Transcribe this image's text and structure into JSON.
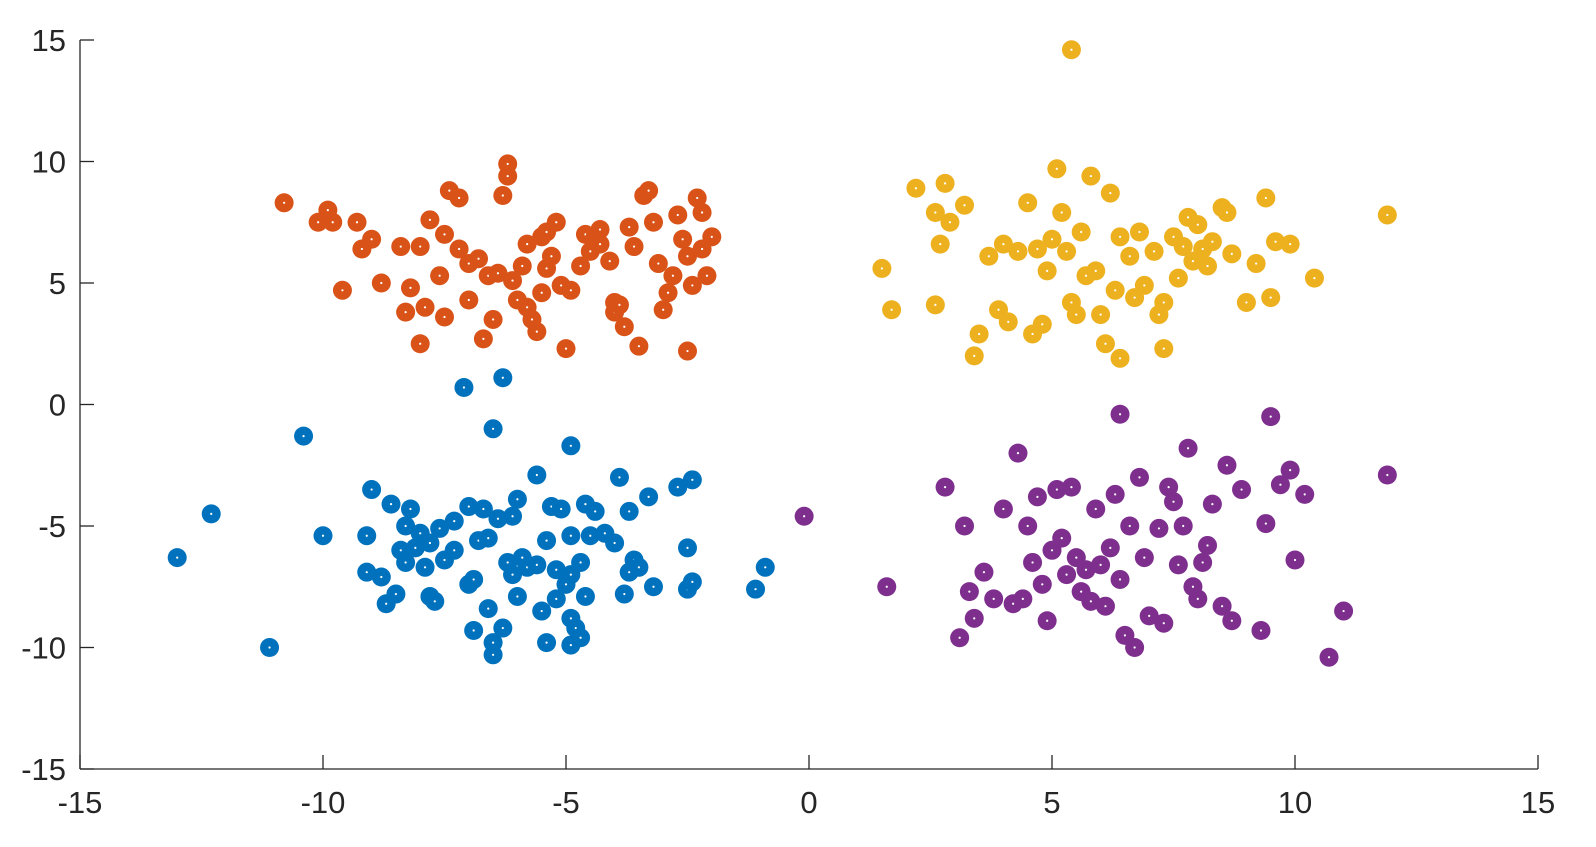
{
  "colors": {
    "background": "#ffffff",
    "axis": "#262626",
    "cluster_blue": "#0072BD",
    "cluster_orange": "#D95319",
    "cluster_yellow": "#EDB120",
    "cluster_purple": "#7E2F8E"
  },
  "chart_data": {
    "type": "scatter",
    "title": "",
    "xlabel": "",
    "ylabel": "",
    "xlim": [
      -15,
      15
    ],
    "ylim": [
      -15,
      15
    ],
    "x_ticks": [
      -15,
      -10,
      -5,
      0,
      5,
      10,
      15
    ],
    "y_ticks": [
      -15,
      -10,
      -5,
      0,
      5,
      10,
      15
    ],
    "x_tick_labels": [
      "-15",
      "-10",
      "-5",
      "0",
      "5",
      "10",
      "15"
    ],
    "y_tick_labels": [
      "-15",
      "-10",
      "-5",
      "0",
      "5",
      "10",
      "15"
    ],
    "grid": false,
    "legend": "none",
    "series": [
      {
        "color": "#0072BD",
        "points": [
          [
            -13.0,
            -6.3
          ],
          [
            -12.3,
            -4.5
          ],
          [
            -11.1,
            -10.0
          ],
          [
            -10.4,
            -1.3
          ],
          [
            -10.0,
            -5.4
          ],
          [
            -9.1,
            -5.4
          ],
          [
            -9.1,
            -6.9
          ],
          [
            -9.0,
            -3.5
          ],
          [
            -8.8,
            -7.1
          ],
          [
            -8.7,
            -8.2
          ],
          [
            -8.6,
            -4.1
          ],
          [
            -8.5,
            -7.8
          ],
          [
            -8.4,
            -6.0
          ],
          [
            -8.3,
            -5.0
          ],
          [
            -8.3,
            -6.5
          ],
          [
            -8.2,
            -4.3
          ],
          [
            -8.1,
            -5.9
          ],
          [
            -8.0,
            -5.3
          ],
          [
            -7.9,
            -6.7
          ],
          [
            -7.8,
            -5.7
          ],
          [
            -7.8,
            -7.9
          ],
          [
            -7.7,
            -8.1
          ],
          [
            -7.6,
            -5.1
          ],
          [
            -7.5,
            -6.4
          ],
          [
            -7.3,
            -6.0
          ],
          [
            -7.3,
            -4.8
          ],
          [
            -7.0,
            -4.2
          ],
          [
            -7.0,
            -7.4
          ],
          [
            -6.9,
            -7.2
          ],
          [
            -6.9,
            -9.3
          ],
          [
            -6.8,
            -5.6
          ],
          [
            -6.7,
            -4.3
          ],
          [
            -6.6,
            -5.5
          ],
          [
            -6.6,
            -8.4
          ],
          [
            -6.5,
            -9.8
          ],
          [
            -6.5,
            -10.3
          ],
          [
            -6.4,
            -4.7
          ],
          [
            -6.3,
            -9.2
          ],
          [
            -6.2,
            -6.5
          ],
          [
            -6.1,
            -4.6
          ],
          [
            -6.1,
            -7.0
          ],
          [
            -6.0,
            -3.9
          ],
          [
            -6.0,
            -7.9
          ],
          [
            -5.9,
            -6.3
          ],
          [
            -5.8,
            -6.7
          ],
          [
            -5.6,
            -2.9
          ],
          [
            -5.6,
            -6.6
          ],
          [
            -5.5,
            -8.5
          ],
          [
            -5.4,
            -5.6
          ],
          [
            -5.4,
            -9.8
          ],
          [
            -5.3,
            -4.2
          ],
          [
            -5.2,
            -6.8
          ],
          [
            -5.2,
            -8.0
          ],
          [
            -5.1,
            -4.3
          ],
          [
            -5.0,
            -7.4
          ],
          [
            -4.9,
            -1.7
          ],
          [
            -4.9,
            -5.4
          ],
          [
            -4.9,
            -7.0
          ],
          [
            -4.9,
            -8.8
          ],
          [
            -4.9,
            -9.9
          ],
          [
            -4.8,
            -9.2
          ],
          [
            -4.7,
            -6.5
          ],
          [
            -4.7,
            -9.6
          ],
          [
            -4.6,
            -4.1
          ],
          [
            -4.6,
            -7.9
          ],
          [
            -4.5,
            -5.4
          ],
          [
            -4.4,
            -4.4
          ],
          [
            -4.2,
            -5.3
          ],
          [
            -4.0,
            -5.7
          ],
          [
            -3.9,
            -3.0
          ],
          [
            -3.8,
            -7.8
          ],
          [
            -3.7,
            -4.4
          ],
          [
            -3.7,
            -6.9
          ],
          [
            -3.6,
            -6.4
          ],
          [
            -3.5,
            -6.7
          ],
          [
            -3.3,
            -3.8
          ],
          [
            -3.2,
            -7.5
          ],
          [
            -2.7,
            -3.4
          ],
          [
            -2.5,
            -7.6
          ],
          [
            -2.5,
            -5.9
          ],
          [
            -2.4,
            -7.3
          ],
          [
            -2.4,
            -3.1
          ],
          [
            -1.1,
            -7.6
          ],
          [
            -0.9,
            -6.7
          ],
          [
            -7.1,
            0.7
          ],
          [
            -6.3,
            1.1
          ],
          [
            -6.5,
            -1.0
          ]
        ]
      },
      {
        "color": "#D95319",
        "points": [
          [
            -10.8,
            8.3
          ],
          [
            -10.1,
            7.5
          ],
          [
            -9.9,
            8.0
          ],
          [
            -9.8,
            7.5
          ],
          [
            -9.6,
            4.7
          ],
          [
            -9.3,
            7.5
          ],
          [
            -9.2,
            6.4
          ],
          [
            -9.0,
            6.8
          ],
          [
            -8.8,
            5.0
          ],
          [
            -8.4,
            6.5
          ],
          [
            -8.3,
            3.8
          ],
          [
            -8.2,
            4.8
          ],
          [
            -8.0,
            2.5
          ],
          [
            -8.0,
            6.5
          ],
          [
            -7.9,
            4.0
          ],
          [
            -7.8,
            7.6
          ],
          [
            -7.6,
            5.3
          ],
          [
            -7.5,
            7.0
          ],
          [
            -7.5,
            3.6
          ],
          [
            -7.4,
            8.8
          ],
          [
            -7.2,
            6.4
          ],
          [
            -7.2,
            8.5
          ],
          [
            -7.0,
            5.8
          ],
          [
            -7.0,
            4.3
          ],
          [
            -6.8,
            6.0
          ],
          [
            -6.7,
            2.7
          ],
          [
            -6.6,
            5.3
          ],
          [
            -6.5,
            3.5
          ],
          [
            -6.4,
            5.4
          ],
          [
            -6.3,
            8.6
          ],
          [
            -6.2,
            9.9
          ],
          [
            -6.2,
            9.4
          ],
          [
            -6.1,
            5.1
          ],
          [
            -6.0,
            4.3
          ],
          [
            -5.9,
            5.7
          ],
          [
            -5.8,
            4.0
          ],
          [
            -5.8,
            6.6
          ],
          [
            -5.7,
            3.5
          ],
          [
            -5.6,
            3.0
          ],
          [
            -5.5,
            6.9
          ],
          [
            -5.5,
            4.6
          ],
          [
            -5.4,
            7.1
          ],
          [
            -5.4,
            5.6
          ],
          [
            -5.3,
            6.1
          ],
          [
            -5.2,
            7.5
          ],
          [
            -5.1,
            4.9
          ],
          [
            -5.0,
            2.3
          ],
          [
            -4.9,
            4.7
          ],
          [
            -4.7,
            5.7
          ],
          [
            -4.6,
            7.0
          ],
          [
            -4.5,
            6.3
          ],
          [
            -4.4,
            6.9
          ],
          [
            -4.3,
            7.2
          ],
          [
            -4.3,
            6.6
          ],
          [
            -4.1,
            5.9
          ],
          [
            -4.0,
            4.2
          ],
          [
            -4.0,
            3.8
          ],
          [
            -3.9,
            4.1
          ],
          [
            -3.8,
            3.2
          ],
          [
            -3.7,
            7.3
          ],
          [
            -3.6,
            6.5
          ],
          [
            -3.5,
            2.4
          ],
          [
            -3.4,
            8.6
          ],
          [
            -3.3,
            8.8
          ],
          [
            -3.2,
            7.5
          ],
          [
            -3.1,
            5.8
          ],
          [
            -3.0,
            3.9
          ],
          [
            -2.9,
            4.6
          ],
          [
            -2.8,
            5.3
          ],
          [
            -2.7,
            7.8
          ],
          [
            -2.6,
            6.8
          ],
          [
            -2.5,
            6.1
          ],
          [
            -2.4,
            4.9
          ],
          [
            -2.3,
            8.5
          ],
          [
            -2.2,
            7.9
          ],
          [
            -2.1,
            5.3
          ],
          [
            -2.5,
            2.2
          ],
          [
            -2.2,
            6.4
          ],
          [
            -2.0,
            6.9
          ]
        ]
      },
      {
        "color": "#EDB120",
        "points": [
          [
            1.5,
            5.6
          ],
          [
            1.7,
            3.9
          ],
          [
            2.2,
            8.9
          ],
          [
            2.6,
            7.9
          ],
          [
            2.6,
            4.1
          ],
          [
            2.7,
            6.6
          ],
          [
            2.8,
            9.1
          ],
          [
            2.9,
            7.5
          ],
          [
            3.2,
            8.2
          ],
          [
            3.4,
            2.0
          ],
          [
            3.5,
            2.9
          ],
          [
            3.7,
            6.1
          ],
          [
            3.9,
            3.9
          ],
          [
            4.0,
            6.6
          ],
          [
            4.1,
            3.4
          ],
          [
            4.3,
            6.3
          ],
          [
            4.5,
            8.3
          ],
          [
            4.6,
            2.9
          ],
          [
            4.7,
            6.4
          ],
          [
            4.8,
            3.3
          ],
          [
            4.9,
            5.5
          ],
          [
            5.0,
            6.8
          ],
          [
            5.1,
            9.7
          ],
          [
            5.2,
            7.9
          ],
          [
            5.3,
            6.3
          ],
          [
            5.4,
            4.2
          ],
          [
            5.5,
            3.7
          ],
          [
            5.6,
            7.1
          ],
          [
            5.7,
            5.3
          ],
          [
            5.8,
            9.4
          ],
          [
            5.9,
            5.5
          ],
          [
            6.0,
            3.7
          ],
          [
            6.1,
            2.5
          ],
          [
            6.2,
            8.7
          ],
          [
            6.3,
            4.7
          ],
          [
            6.4,
            6.9
          ],
          [
            6.4,
            1.9
          ],
          [
            6.6,
            6.1
          ],
          [
            6.7,
            4.4
          ],
          [
            6.8,
            7.1
          ],
          [
            6.9,
            4.9
          ],
          [
            7.1,
            6.3
          ],
          [
            7.2,
            3.7
          ],
          [
            7.3,
            4.2
          ],
          [
            7.3,
            2.3
          ],
          [
            7.5,
            6.9
          ],
          [
            7.6,
            5.2
          ],
          [
            7.7,
            6.5
          ],
          [
            7.8,
            7.7
          ],
          [
            7.9,
            5.9
          ],
          [
            8.0,
            7.4
          ],
          [
            8.1,
            6.4
          ],
          [
            8.2,
            5.7
          ],
          [
            8.3,
            6.7
          ],
          [
            8.5,
            8.1
          ],
          [
            8.6,
            7.9
          ],
          [
            8.7,
            6.2
          ],
          [
            9.0,
            4.2
          ],
          [
            9.2,
            5.8
          ],
          [
            9.4,
            8.5
          ],
          [
            9.5,
            4.4
          ],
          [
            9.6,
            6.7
          ],
          [
            9.9,
            6.6
          ],
          [
            10.4,
            5.2
          ],
          [
            11.9,
            7.8
          ],
          [
            5.4,
            14.6
          ]
        ]
      },
      {
        "color": "#7E2F8E",
        "points": [
          [
            -0.1,
            -4.6
          ],
          [
            1.6,
            -7.5
          ],
          [
            2.8,
            -3.4
          ],
          [
            3.1,
            -9.6
          ],
          [
            3.2,
            -5.0
          ],
          [
            3.3,
            -7.7
          ],
          [
            3.4,
            -8.8
          ],
          [
            3.6,
            -6.9
          ],
          [
            3.8,
            -8.0
          ],
          [
            4.0,
            -4.3
          ],
          [
            4.3,
            -2.0
          ],
          [
            4.4,
            -8.0
          ],
          [
            4.5,
            -5.0
          ],
          [
            4.6,
            -6.5
          ],
          [
            4.7,
            -3.8
          ],
          [
            4.8,
            -7.4
          ],
          [
            4.9,
            -8.9
          ],
          [
            5.0,
            -6.0
          ],
          [
            5.1,
            -3.5
          ],
          [
            5.2,
            -5.5
          ],
          [
            5.3,
            -7.0
          ],
          [
            5.4,
            -3.4
          ],
          [
            5.5,
            -6.3
          ],
          [
            5.6,
            -7.7
          ],
          [
            5.7,
            -6.8
          ],
          [
            5.8,
            -8.1
          ],
          [
            5.9,
            -4.3
          ],
          [
            6.0,
            -6.6
          ],
          [
            6.1,
            -8.3
          ],
          [
            6.2,
            -5.9
          ],
          [
            6.3,
            -3.7
          ],
          [
            6.4,
            -7.2
          ],
          [
            6.5,
            -9.5
          ],
          [
            6.6,
            -5.0
          ],
          [
            6.7,
            -10.0
          ],
          [
            6.8,
            -3.0
          ],
          [
            6.9,
            -6.3
          ],
          [
            7.0,
            -8.7
          ],
          [
            7.2,
            -5.1
          ],
          [
            7.3,
            -9.0
          ],
          [
            7.4,
            -3.4
          ],
          [
            7.5,
            -4.0
          ],
          [
            7.6,
            -6.6
          ],
          [
            7.7,
            -5.0
          ],
          [
            7.8,
            -1.8
          ],
          [
            7.9,
            -7.5
          ],
          [
            8.0,
            -8.0
          ],
          [
            8.1,
            -6.5
          ],
          [
            8.2,
            -5.8
          ],
          [
            8.3,
            -4.1
          ],
          [
            8.5,
            -8.3
          ],
          [
            8.6,
            -2.5
          ],
          [
            8.7,
            -8.9
          ],
          [
            8.9,
            -3.5
          ],
          [
            9.3,
            -9.3
          ],
          [
            9.4,
            -4.9
          ],
          [
            9.5,
            -0.5
          ],
          [
            9.7,
            -3.3
          ],
          [
            9.9,
            -2.7
          ],
          [
            10.0,
            -6.4
          ],
          [
            10.2,
            -3.7
          ],
          [
            10.7,
            -10.4
          ],
          [
            11.0,
            -8.5
          ],
          [
            11.9,
            -2.9
          ],
          [
            6.4,
            -0.4
          ],
          [
            4.2,
            -8.2
          ]
        ]
      }
    ]
  }
}
